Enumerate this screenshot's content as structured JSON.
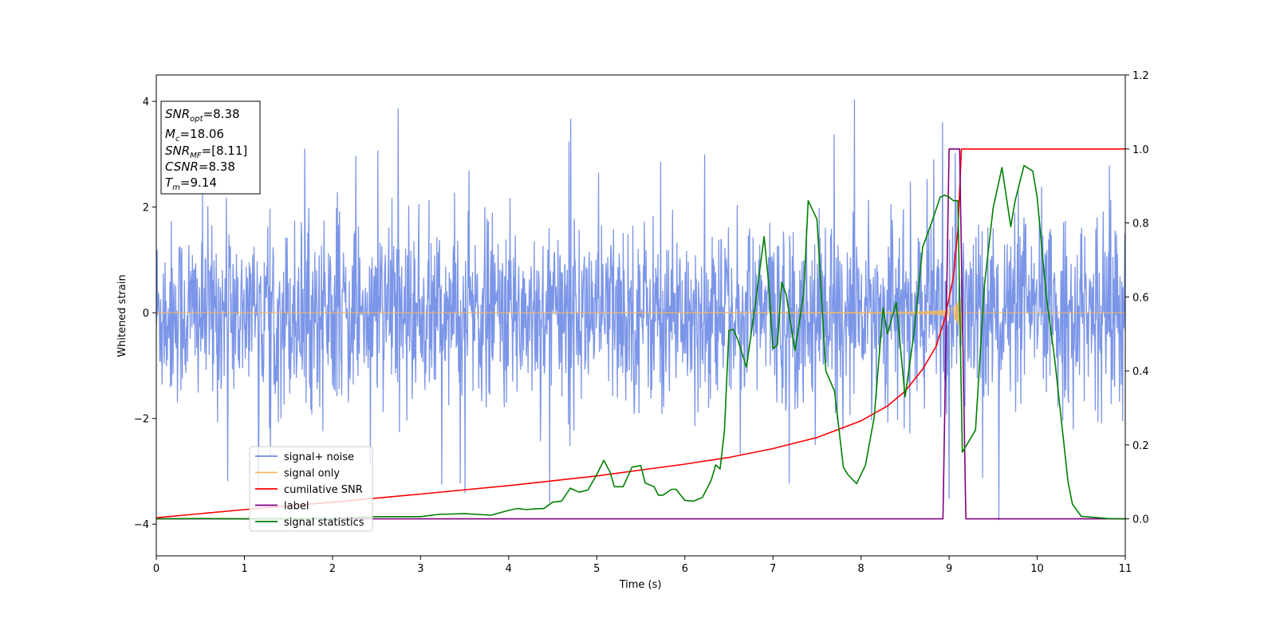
{
  "chart_data": {
    "type": "line",
    "xlabel": "Time (s)",
    "ylabel": "Whitened strain",
    "xlim": [
      0,
      11
    ],
    "ylim_left": [
      -4.6,
      4.5
    ],
    "ylim_right": [
      -0.1,
      1.2
    ],
    "x_ticks": [
      0,
      1,
      2,
      3,
      4,
      5,
      6,
      7,
      8,
      9,
      10,
      11
    ],
    "left_ticks": [
      -4,
      -2,
      0,
      2,
      4
    ],
    "right_ticks": [
      "0.0",
      "0.2",
      "0.4",
      "0.6",
      "0.8",
      "1.0",
      "1.2"
    ],
    "grid": false,
    "legend_position": "lower-left",
    "info_box": {
      "position": "upper-left",
      "lines": [
        {
          "base": "SNR",
          "sub": "opt",
          "value": "=8.38"
        },
        {
          "base": "M",
          "sub": "c",
          "value": "=18.06"
        },
        {
          "base": "SNR",
          "sub": "MF",
          "value": "=[8.11]"
        },
        {
          "base": "CSNR",
          "sub": "",
          "value": "=8.38"
        },
        {
          "base": "T",
          "sub": "m",
          "value": "=9.14"
        }
      ]
    },
    "series": [
      {
        "name": "signal+ noise",
        "axis": "left",
        "color": "#6d8ae6",
        "kind": "noise",
        "std": 0.85,
        "min": -4.15,
        "max": 4.1,
        "samples": 2200
      },
      {
        "name": "signal only",
        "axis": "left",
        "color": "#f5b95f",
        "kind": "chirp",
        "merger_time": 9.14,
        "peak_amplitude": 1.1
      },
      {
        "name": "cumilative SNR",
        "axis": "right",
        "color": "#ff0000",
        "x": [
          0,
          1,
          2,
          3,
          4,
          5,
          6,
          6.5,
          7,
          7.5,
          8,
          8.3,
          8.5,
          8.7,
          8.85,
          8.95,
          9.05,
          9.1,
          9.14,
          11
        ],
        "values": [
          0.003,
          0.025,
          0.045,
          0.067,
          0.09,
          0.116,
          0.148,
          0.166,
          0.19,
          0.22,
          0.265,
          0.305,
          0.345,
          0.405,
          0.465,
          0.54,
          0.655,
          0.78,
          1.0,
          1.0
        ]
      },
      {
        "name": "label",
        "axis": "right",
        "color": "#800080",
        "x": [
          0,
          8.93,
          9.0,
          9.12,
          9.19,
          11
        ],
        "values": [
          0,
          0,
          1,
          1,
          0,
          0
        ]
      },
      {
        "name": "signal statistics",
        "axis": "right",
        "color": "#008000",
        "x": [
          0,
          0.5,
          1,
          1.5,
          2,
          2.5,
          3,
          3.2,
          3.5,
          3.8,
          4,
          4.1,
          4.2,
          4.3,
          4.4,
          4.5,
          4.6,
          4.7,
          4.8,
          4.9,
          5.0,
          5.08,
          5.15,
          5.2,
          5.3,
          5.4,
          5.5,
          5.55,
          5.65,
          5.7,
          5.75,
          5.85,
          5.9,
          6.0,
          6.1,
          6.2,
          6.3,
          6.35,
          6.4,
          6.45,
          6.5,
          6.55,
          6.6,
          6.7,
          6.8,
          6.9,
          6.95,
          7.0,
          7.05,
          7.1,
          7.15,
          7.25,
          7.35,
          7.4,
          7.5,
          7.6,
          7.7,
          7.8,
          7.85,
          7.95,
          8.05,
          8.15,
          8.25,
          8.3,
          8.4,
          8.5,
          8.6,
          8.7,
          8.8,
          8.9,
          8.95,
          9.0,
          9.05,
          9.1,
          9.15,
          9.2,
          9.3,
          9.4,
          9.5,
          9.6,
          9.7,
          9.75,
          9.85,
          9.95,
          10.0,
          10.1,
          10.2,
          10.3,
          10.35,
          10.4,
          10.5,
          10.8,
          11
        ],
        "values": [
          0.0,
          0.001,
          0.0,
          0.0,
          0.001,
          0.006,
          0.006,
          0.012,
          0.014,
          0.01,
          0.023,
          0.028,
          0.025,
          0.027,
          0.028,
          0.045,
          0.048,
          0.083,
          0.072,
          0.078,
          0.12,
          0.158,
          0.127,
          0.087,
          0.087,
          0.14,
          0.144,
          0.097,
          0.087,
          0.064,
          0.064,
          0.08,
          0.08,
          0.05,
          0.048,
          0.058,
          0.105,
          0.146,
          0.135,
          0.238,
          0.51,
          0.512,
          0.485,
          0.41,
          0.58,
          0.763,
          0.64,
          0.46,
          0.47,
          0.64,
          0.607,
          0.455,
          0.61,
          0.86,
          0.81,
          0.4,
          0.345,
          0.14,
          0.12,
          0.095,
          0.145,
          0.275,
          0.57,
          0.5,
          0.585,
          0.33,
          0.5,
          0.735,
          0.8,
          0.87,
          0.875,
          0.87,
          0.86,
          0.86,
          0.18,
          0.2,
          0.24,
          0.63,
          0.84,
          0.95,
          0.79,
          0.86,
          0.955,
          0.94,
          0.87,
          0.61,
          0.43,
          0.21,
          0.1,
          0.04,
          0.007,
          0.001,
          0.0
        ]
      }
    ]
  }
}
